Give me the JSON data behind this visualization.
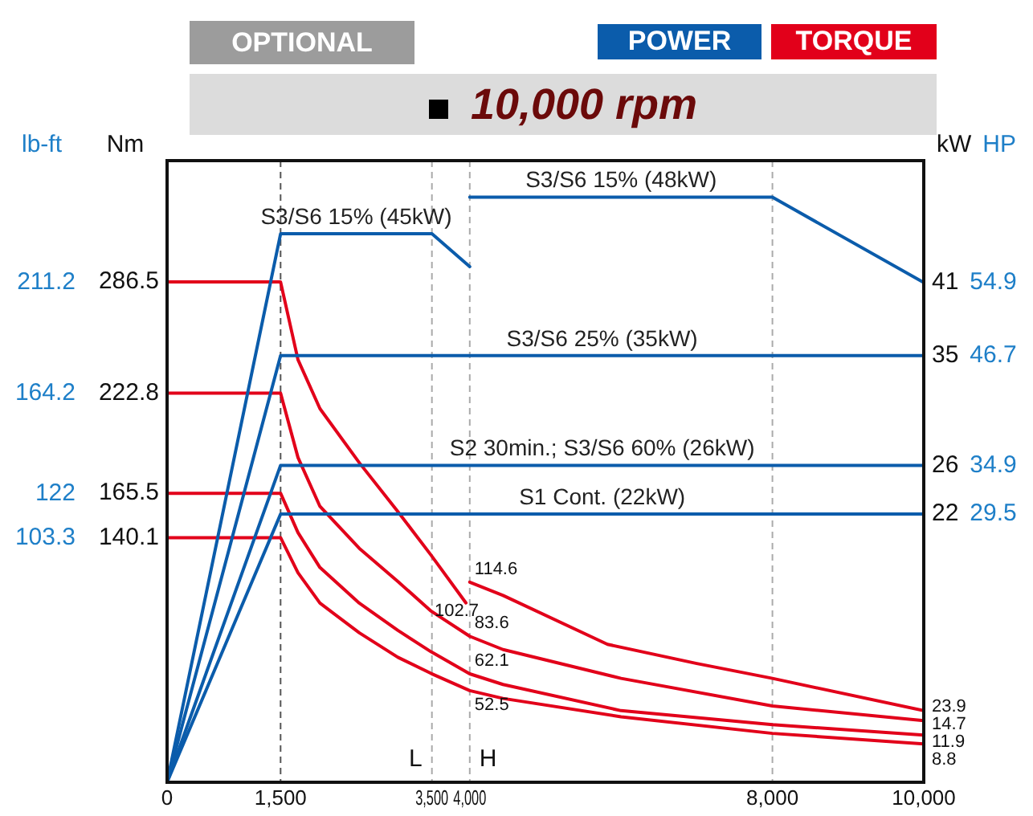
{
  "chart_data": {
    "type": "line",
    "title": "10,000 rpm",
    "annotations": [
      "OPTIONAL",
      "POWER",
      "TORQUE",
      "23.9",
      "14.7",
      "11.9",
      "8.8",
      "HP",
      "54.9",
      "46.7",
      "34.9",
      "29.5"
    ],
    "ylabel": "Nm",
    "y2label": "kW",
    "y3label": "lb-ft",
    "xlim": [
      0,
      10000
    ],
    "xticks": [
      0,
      {
        "value": 1500,
        "label": "1,500"
      },
      {
        "value": 3500,
        "label": "3,500"
      },
      {
        "value": 4000,
        "label": "4,000"
      },
      {
        "value": 8000,
        "label": "8,000"
      },
      {
        "value": 10000,
        "label": "10,000"
      }
    ],
    "ylim": [
      0,
      356
    ],
    "yticks": [
      286.5,
      222.8,
      165.5,
      140.1
    ],
    "y2lim": [
      0,
      51
    ],
    "y2ticks": [
      41,
      35,
      26,
      22
    ],
    "y3lim": [
      0,
      262.6
    ],
    "y3ticks": [
      211.2,
      164.2,
      122,
      103.3
    ],
    "ref_lines": [
      {
        "axis": "x",
        "value": 1500,
        "color": "#555555",
        "line_style": "dashed"
      },
      {
        "axis": "x",
        "value": 3500,
        "label": "L",
        "color": "#aaaaaa",
        "line_style": "dashed"
      },
      {
        "axis": "x",
        "value": 4000,
        "label": "H",
        "color": "#aaaaaa",
        "line_style": "dashed"
      },
      {
        "axis": "x",
        "value": 8000,
        "color": "#aaaaaa",
        "line_style": "dashed"
      }
    ],
    "series": [
      {
        "name": "S3/S6 15% (45kW)",
        "axis": "y2",
        "color": "#0b5cab",
        "x": [
          0,
          1500,
          3500,
          4000
        ],
        "values": [
          0,
          45,
          45,
          42.3
        ]
      },
      {
        "name": "S3/S6 15% (48kW)",
        "axis": "y2",
        "color": "#0b5cab",
        "x": [
          4000,
          8000,
          10000
        ],
        "values": [
          48,
          48,
          41
        ]
      },
      {
        "name": "S3/S6 25% (35kW)",
        "axis": "y2",
        "color": "#0b5cab",
        "x": [
          0,
          1500,
          10000
        ],
        "values": [
          0,
          35,
          35
        ]
      },
      {
        "name": "S2 30min.; S3/S6 60% (26kW)",
        "axis": "y2",
        "color": "#0b5cab",
        "x": [
          0,
          1500,
          10000
        ],
        "values": [
          0,
          26,
          26
        ]
      },
      {
        "name": "S1 Cont. (22kW)",
        "axis": "y2",
        "color": "#0b5cab",
        "x": [
          0,
          1500,
          10000
        ],
        "values": [
          0,
          22,
          22
        ]
      },
      {
        "color": "#e2001a",
        "x": [
          0,
          1500,
          1730,
          2020,
          2540,
          3050,
          3490,
          3950
        ],
        "values": [
          286.5,
          286.5,
          242,
          214,
          183,
          155,
          130,
          102.7
        ],
        "value_labels": [
          null,
          null,
          null,
          null,
          null,
          null,
          null,
          "102.7"
        ]
      },
      {
        "color": "#e2001a",
        "x": [
          4000,
          4440,
          5820,
          7000,
          8000,
          10000
        ],
        "values": [
          114.6,
          107,
          79,
          68,
          59.5,
          41
        ],
        "value_labels": [
          "114.6",
          null,
          null,
          null,
          null,
          null
        ]
      },
      {
        "color": "#e2001a",
        "x": [
          0,
          1500,
          1730,
          2020,
          2540,
          3050,
          3490,
          4000,
          4440,
          6000,
          8000,
          10000
        ],
        "values": [
          222.8,
          222.8,
          186,
          158,
          134,
          115,
          98,
          83.6,
          76,
          59.5,
          43.7,
          35.3
        ],
        "value_labels": [
          null,
          null,
          null,
          null,
          null,
          null,
          null,
          "83.6",
          null,
          null,
          null,
          null
        ]
      },
      {
        "color": "#e2001a",
        "x": [
          0,
          1500,
          1730,
          2020,
          2540,
          3050,
          3490,
          4000,
          4440,
          6000,
          8000,
          10000
        ],
        "values": [
          165.5,
          165.5,
          143,
          123,
          102.6,
          87,
          74.7,
          62.1,
          56,
          41,
          33,
          27
        ],
        "value_labels": [
          null,
          null,
          null,
          null,
          null,
          null,
          null,
          "62.1",
          null,
          null,
          null,
          null
        ]
      },
      {
        "color": "#e2001a",
        "x": [
          0,
          1500,
          1730,
          2020,
          2540,
          3050,
          3490,
          4000,
          4440,
          6000,
          8000,
          10000
        ],
        "values": [
          140.1,
          140.1,
          120,
          102.6,
          85.6,
          71.6,
          62.3,
          52.5,
          48,
          37.5,
          28,
          22
        ],
        "value_labels": [
          null,
          null,
          null,
          null,
          null,
          null,
          null,
          "52.5",
          null,
          null,
          null,
          null
        ]
      }
    ]
  }
}
